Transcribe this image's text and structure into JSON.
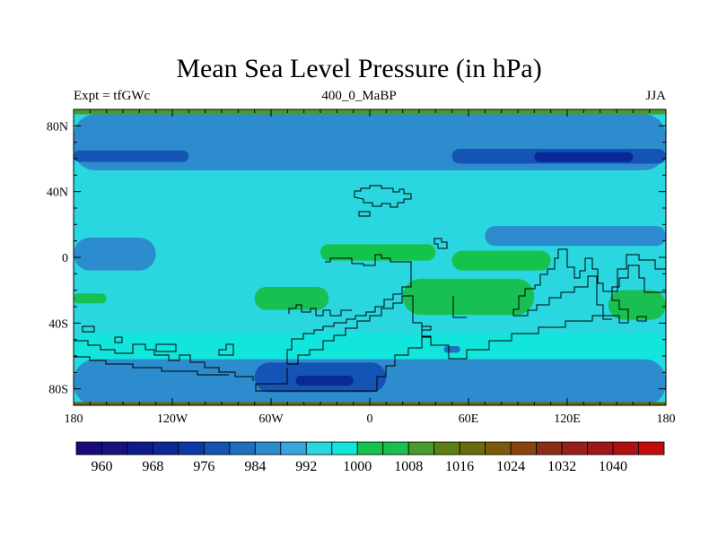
{
  "title": "Mean Sea Level Pressure (in hPa)",
  "subtitle_left": "Expt = tfGWc",
  "subtitle_center": "400_0_MaBP",
  "subtitle_right": "JJA",
  "x_ticks": [
    {
      "lon": -180,
      "label": "180"
    },
    {
      "lon": -120,
      "label": "120W"
    },
    {
      "lon": -60,
      "label": "60W"
    },
    {
      "lon": 0,
      "label": "0"
    },
    {
      "lon": 60,
      "label": "60E"
    },
    {
      "lon": 120,
      "label": "120E"
    },
    {
      "lon": 180,
      "label": "180"
    }
  ],
  "y_ticks": [
    {
      "lat": 80,
      "label": "80N"
    },
    {
      "lat": 40,
      "label": "40N"
    },
    {
      "lat": 0,
      "label": "0"
    },
    {
      "lat": -40,
      "label": "40S"
    },
    {
      "lat": -80,
      "label": "80S"
    }
  ],
  "colorbar": {
    "colors": [
      "#1c0a7c",
      "#16127f",
      "#0e1c8a",
      "#0a2896",
      "#0b3aa6",
      "#1354b4",
      "#1f6fc0",
      "#2d8ccd",
      "#38a8dc",
      "#2ad7e0",
      "#12e6dc",
      "#16c34a",
      "#17c050",
      "#4a9b2e",
      "#5d7f16",
      "#6b6a0e",
      "#7c5a0c",
      "#8a4410",
      "#8c2d18",
      "#96201c",
      "#a0161a",
      "#b01010",
      "#c40c0c"
    ],
    "labels": [
      "960",
      "968",
      "976",
      "984",
      "992",
      "1000",
      "1008",
      "1016",
      "1024",
      "1032",
      "1040"
    ]
  },
  "chart_data": {
    "type": "heatmap",
    "title": "Mean Sea Level Pressure (in hPa)",
    "variable": "Mean Sea Level Pressure",
    "units": "hPa",
    "experiment": "tfGWc",
    "time": "400_0_MaBP",
    "season": "JJA",
    "xlim": [
      -180,
      180
    ],
    "ylim": [
      -90,
      90
    ],
    "levels": [
      960,
      964,
      968,
      972,
      976,
      980,
      984,
      988,
      992,
      996,
      1000,
      1004,
      1008,
      1012,
      1016,
      1020,
      1024,
      1028,
      1032,
      1036,
      1040,
      1044
    ],
    "background_level": 996,
    "regions": [
      {
        "value": 988,
        "lon": [
          -180,
          180
        ],
        "lat": [
          53,
          87
        ]
      },
      {
        "value": 980,
        "lon": [
          -180,
          -110
        ],
        "lat": [
          58,
          65
        ]
      },
      {
        "value": 980,
        "lon": [
          50,
          180
        ],
        "lat": [
          57,
          66
        ]
      },
      {
        "value": 972,
        "lon": [
          100,
          160
        ],
        "lat": [
          58,
          64
        ]
      },
      {
        "value": 1000,
        "lon": [
          -180,
          180
        ],
        "lat": [
          -64,
          -46
        ]
      },
      {
        "value": 988,
        "lon": [
          -180,
          180
        ],
        "lat": [
          -90,
          -62
        ]
      },
      {
        "value": 980,
        "lon": [
          -70,
          10
        ],
        "lat": [
          -82,
          -64
        ]
      },
      {
        "value": 972,
        "lon": [
          -45,
          -10
        ],
        "lat": [
          -78,
          -72
        ]
      },
      {
        "value": 984,
        "lon": [
          45,
          55
        ],
        "lat": [
          -58,
          -54
        ]
      },
      {
        "value": 988,
        "lon": [
          -180,
          -130
        ],
        "lat": [
          -8,
          12
        ]
      },
      {
        "value": 988,
        "lon": [
          70,
          180
        ],
        "lat": [
          7,
          19
        ]
      },
      {
        "value": 1008,
        "lon": [
          -180,
          -160
        ],
        "lat": [
          -28,
          -22
        ]
      },
      {
        "value": 1008,
        "lon": [
          -70,
          -25
        ],
        "lat": [
          -32,
          -18
        ]
      },
      {
        "value": 1008,
        "lon": [
          20,
          100
        ],
        "lat": [
          -35,
          -13
        ]
      },
      {
        "value": 1008,
        "lon": [
          145,
          180
        ],
        "lat": [
          -38,
          -20
        ]
      },
      {
        "value": 1004,
        "lon": [
          -30,
          40
        ],
        "lat": [
          -2,
          8
        ]
      },
      {
        "value": 1004,
        "lon": [
          50,
          110
        ],
        "lat": [
          -8,
          4
        ]
      },
      {
        "value": 1012,
        "lon": [
          -180,
          180
        ],
        "lat": [
          87,
          90
        ]
      },
      {
        "value": 1020,
        "lon": [
          -180,
          180
        ],
        "lat": [
          -90,
          -88
        ]
      }
    ],
    "continent_outlines": true
  }
}
